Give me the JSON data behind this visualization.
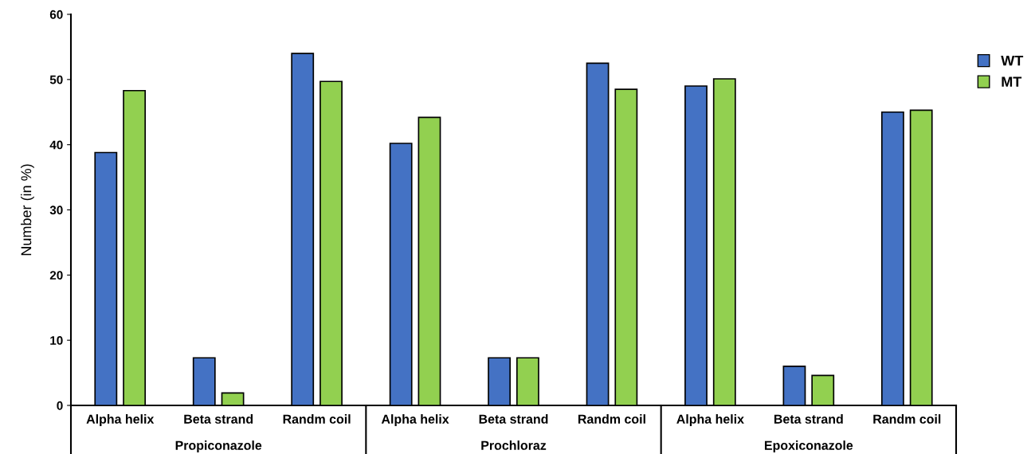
{
  "chart_data": {
    "type": "bar",
    "ylabel": "Number (in %)",
    "categories": [
      "Alpha helix",
      "Beta strand",
      "Randm coil",
      "Alpha helix",
      "Beta strand",
      "Randm coil",
      "Alpha helix",
      "Beta strand",
      "Randm coil"
    ],
    "series": [
      {
        "name": "WT",
        "color": "#4472c4",
        "values": [
          38.8,
          7.3,
          54.0,
          40.2,
          7.3,
          52.5,
          49.0,
          6.0,
          45.0
        ]
      },
      {
        "name": "MT",
        "color": "#92d050",
        "values": [
          48.3,
          1.9,
          49.7,
          44.2,
          7.3,
          48.5,
          50.1,
          4.6,
          45.3
        ]
      }
    ],
    "annotations": [
      "Propiconazole",
      "Prochloraz",
      "Epoxiconazole"
    ],
    "ylim": [
      0,
      60
    ],
    "yticks": [
      0,
      10,
      20,
      30,
      40,
      50,
      60
    ],
    "grid": false,
    "legend": "top right"
  }
}
